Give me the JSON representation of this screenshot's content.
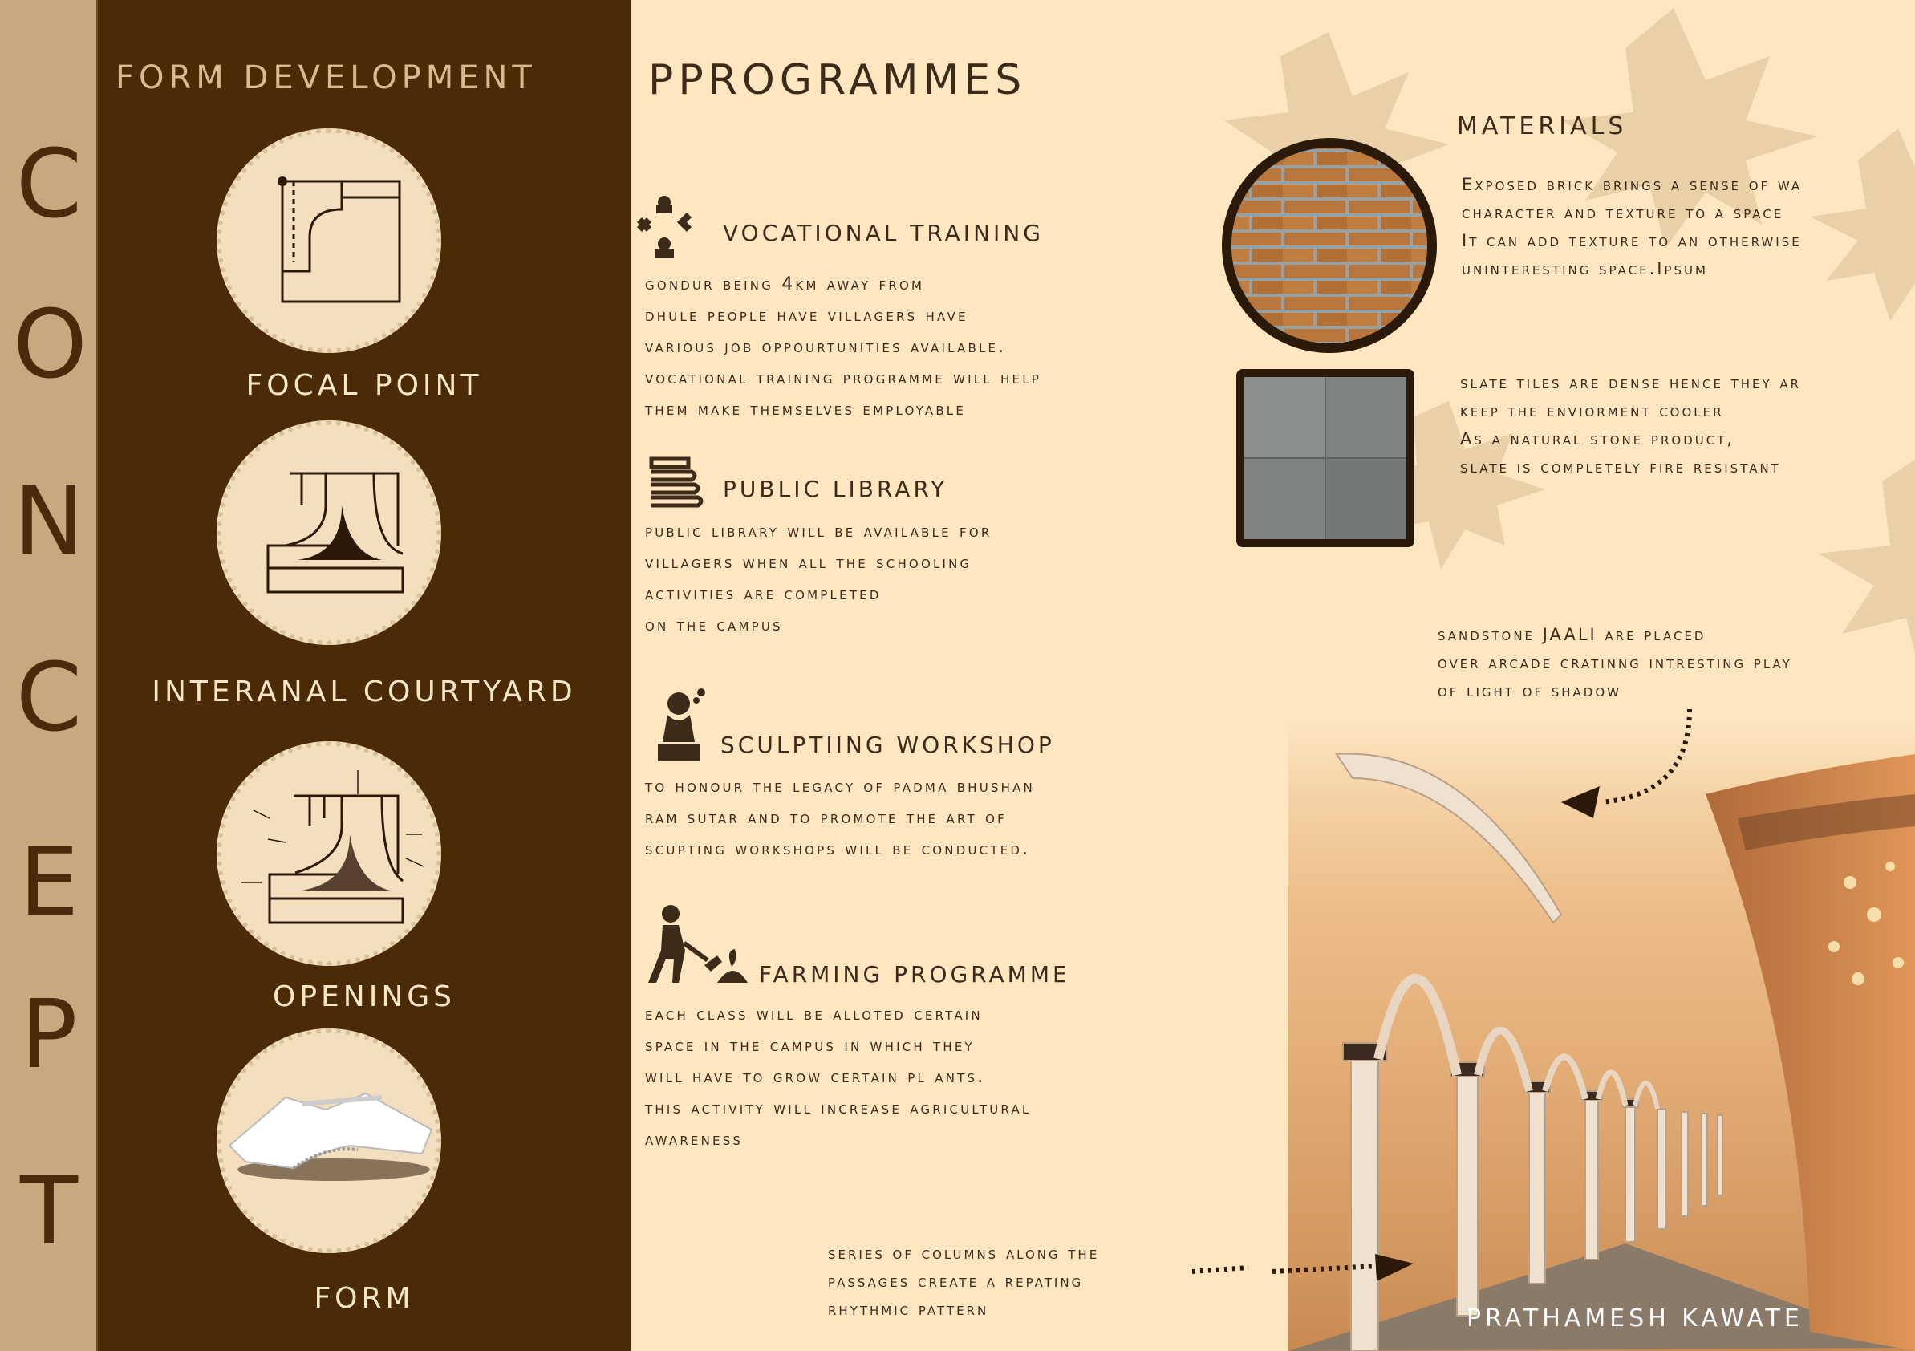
{
  "concept": {
    "letters": [
      "C",
      "O",
      "N",
      "C",
      "E",
      "P",
      "T"
    ]
  },
  "form_development": {
    "heading": "FORM DEVELOPMENT",
    "items": [
      {
        "label": "FOCAL POINT"
      },
      {
        "label": "INTERANAL COURTYARD"
      },
      {
        "label": "OPENINGS"
      },
      {
        "label": "FORM"
      }
    ]
  },
  "programmes": {
    "heading": "PPROGRAMMES",
    "items": [
      {
        "title": "VOCATIONAL TRAINING",
        "lines": [
          "GONDUR BEING 4KM AWAY FROM",
          "DHULE PEOPLE HAVE VILLAGERS HAVE",
          "VARIOUS JOB OPPOURTUNITIES AVAILABLE.",
          "Vocational training programme will help",
          "them make themselves employable"
        ]
      },
      {
        "title": "PUBLIC LIBRARY",
        "lines": [
          "PUBLIC LIBRARY WILL BE AVAILABLE FOR",
          "VILLAGERS WHEN ALL THE SCHOOLING",
          "ACTIVITIES ARE COMPLETED",
          "ON THE CAMPUS"
        ]
      },
      {
        "title": "SCULPTIING WORKSHOP",
        "lines": [
          "TO HONOUR THE LEGACY OF PADMA BHUSHAN",
          "RAM SUTAR AND TO PROMOTE THE ART OF",
          "SCUPTING WORKSHOPS WILL BE CONDUCTED."
        ]
      },
      {
        "title": "FARMING PROGRAMME",
        "lines": [
          "EACH CLASS WILL BE ALLOTED CERTAIN",
          "SPACE IN THE CAMPUS IN WHICH THEY",
          "WILL HAVE TO GROW CERTAIN PL ANTS.",
          "THIS ACTIVITY WILL INCREASE AGRICULTURAL",
          "AWARENESS"
        ]
      }
    ]
  },
  "materials": {
    "heading": "MATERIALS",
    "brick_lines": [
      "Exposed brick brings a sense of wa",
      "character and texture to a space",
      "It can add texture to an otherwise",
      "uninteresting space.Ipsum"
    ],
    "slate_lines": [
      "slate tiles are dense hence they ar",
      "keep the enviorment cooler",
      "As a natural stone product,",
      "slate is completely fire resistant"
    ],
    "jaali_lines": [
      "sandstone  JAALI  are placed",
      "over  arcade cratinng intresting play",
      "of light of shadow"
    ],
    "columns_lines": [
      "series of columns along the",
      "passages  create a repating",
      "rhythmic pattern"
    ]
  },
  "author": "PRATHAMESH KAWATE",
  "colors": {
    "dark_brown": "#4a2b05",
    "cream": "#fde6c0",
    "strip": "#c8a97f",
    "text": "#3d2b1a"
  }
}
